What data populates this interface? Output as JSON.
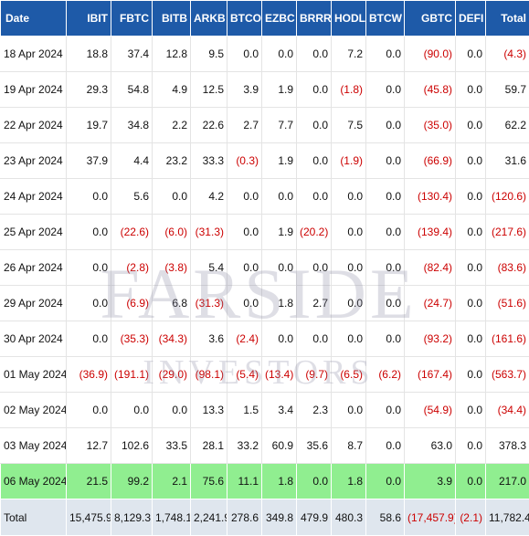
{
  "columns": [
    "Date",
    "IBIT",
    "FBTC",
    "BITB",
    "ARKB",
    "BTCO",
    "EZBC",
    "BRRR",
    "HODL",
    "BTCW",
    "GBTC",
    "DEFI",
    "Total"
  ],
  "rows": [
    {
      "kind": "row",
      "cells": [
        "18 Apr 2024",
        "18.8",
        "37.4",
        "12.8",
        "9.5",
        "0.0",
        "0.0",
        "0.0",
        "7.2",
        "0.0",
        "(90.0)",
        "0.0",
        "(4.3)"
      ]
    },
    {
      "kind": "row",
      "cells": [
        "19 Apr 2024",
        "29.3",
        "54.8",
        "4.9",
        "12.5",
        "3.9",
        "1.9",
        "0.0",
        "(1.8)",
        "0.0",
        "(45.8)",
        "0.0",
        "59.7"
      ]
    },
    {
      "kind": "row",
      "cells": [
        "22 Apr 2024",
        "19.7",
        "34.8",
        "2.2",
        "22.6",
        "2.7",
        "7.7",
        "0.0",
        "7.5",
        "0.0",
        "(35.0)",
        "0.0",
        "62.2"
      ]
    },
    {
      "kind": "row",
      "cells": [
        "23 Apr 2024",
        "37.9",
        "4.4",
        "23.2",
        "33.3",
        "(0.3)",
        "1.9",
        "0.0",
        "(1.9)",
        "0.0",
        "(66.9)",
        "0.0",
        "31.6"
      ]
    },
    {
      "kind": "row",
      "cells": [
        "24 Apr 2024",
        "0.0",
        "5.6",
        "0.0",
        "4.2",
        "0.0",
        "0.0",
        "0.0",
        "0.0",
        "0.0",
        "(130.4)",
        "0.0",
        "(120.6)"
      ]
    },
    {
      "kind": "row",
      "cells": [
        "25 Apr 2024",
        "0.0",
        "(22.6)",
        "(6.0)",
        "(31.3)",
        "0.0",
        "1.9",
        "(20.2)",
        "0.0",
        "0.0",
        "(139.4)",
        "0.0",
        "(217.6)"
      ]
    },
    {
      "kind": "row",
      "cells": [
        "26 Apr 2024",
        "0.0",
        "(2.8)",
        "(3.8)",
        "5.4",
        "0.0",
        "0.0",
        "0.0",
        "0.0",
        "0.0",
        "(82.4)",
        "0.0",
        "(83.6)"
      ]
    },
    {
      "kind": "row",
      "cells": [
        "29 Apr 2024",
        "0.0",
        "(6.9)",
        "6.8",
        "(31.3)",
        "0.0",
        "1.8",
        "2.7",
        "0.0",
        "0.0",
        "(24.7)",
        "0.0",
        "(51.6)"
      ]
    },
    {
      "kind": "row",
      "cells": [
        "30 Apr 2024",
        "0.0",
        "(35.3)",
        "(34.3)",
        "3.6",
        "(2.4)",
        "0.0",
        "0.0",
        "0.0",
        "0.0",
        "(93.2)",
        "0.0",
        "(161.6)"
      ]
    },
    {
      "kind": "row",
      "cells": [
        "01 May 2024",
        "(36.9)",
        "(191.1)",
        "(29.0)",
        "(98.1)",
        "(5.4)",
        "(13.4)",
        "(9.7)",
        "(6.5)",
        "(6.2)",
        "(167.4)",
        "0.0",
        "(563.7)"
      ]
    },
    {
      "kind": "row",
      "cells": [
        "02 May 2024",
        "0.0",
        "0.0",
        "0.0",
        "13.3",
        "1.5",
        "3.4",
        "2.3",
        "0.0",
        "0.0",
        "(54.9)",
        "0.0",
        "(34.4)"
      ]
    },
    {
      "kind": "row",
      "cells": [
        "03 May 2024",
        "12.7",
        "102.6",
        "33.5",
        "28.1",
        "33.2",
        "60.9",
        "35.6",
        "8.7",
        "0.0",
        "63.0",
        "0.0",
        "378.3"
      ]
    },
    {
      "kind": "hl",
      "cells": [
        "06 May 2024",
        "21.5",
        "99.2",
        "2.1",
        "75.6",
        "11.1",
        "1.8",
        "0.0",
        "1.8",
        "0.0",
        "3.9",
        "0.0",
        "217.0"
      ]
    },
    {
      "kind": "total",
      "cells": [
        "Total",
        "15,475.9",
        "8,129.3",
        "1,748.1",
        "2,241.9",
        "278.6",
        "349.8",
        "479.9",
        "480.3",
        "58.6",
        "(17,457.9)",
        "(2.1)",
        "11,782.4"
      ]
    }
  ],
  "watermark": {
    "line1": "FARSIDE",
    "line2": "INVESTORS"
  },
  "colors": {
    "header_bg": "#1e5aa8",
    "negative": "#cc0000",
    "highlight": "#90ee90",
    "total_bg": "#dfe6ee"
  }
}
